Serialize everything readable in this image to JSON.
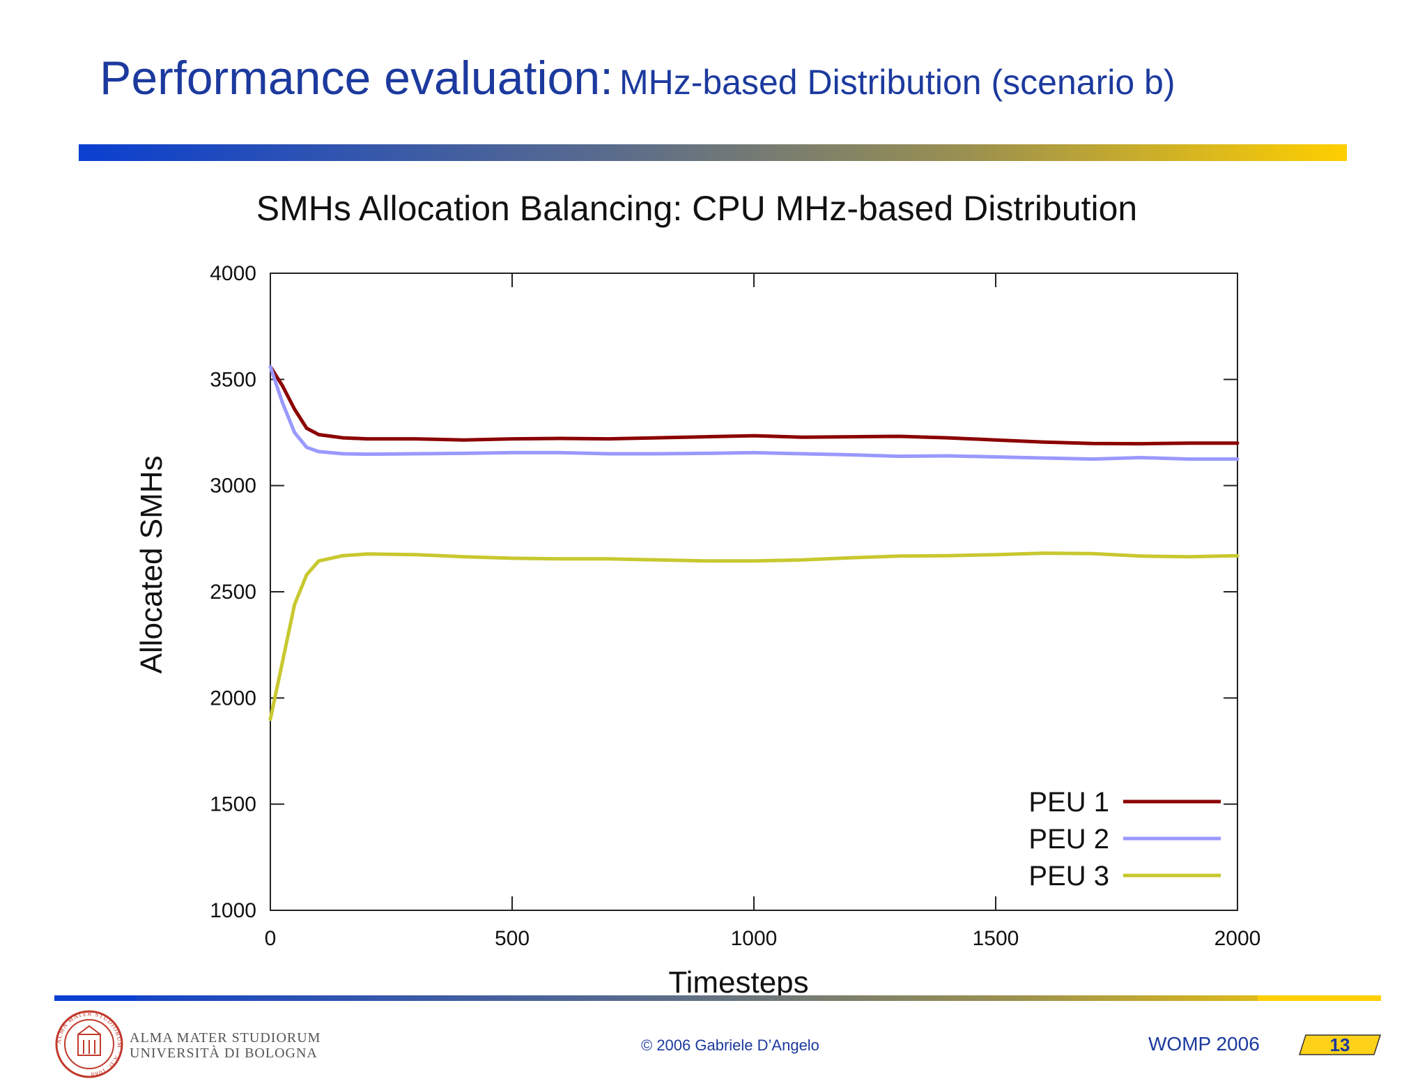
{
  "slide": {
    "title_main": "Performance evaluation:",
    "title_sub": "MHz-based Distribution (scenario b)"
  },
  "chart_data": {
    "type": "line",
    "title": "SMHs Allocation Balancing: CPU MHz-based Distribution",
    "xlabel": "Timesteps",
    "ylabel": "Allocated SMHs",
    "xlim": [
      0,
      2000
    ],
    "ylim": [
      1000,
      4000
    ],
    "xticks": [
      0,
      500,
      1000,
      1500,
      2000
    ],
    "yticks": [
      1000,
      1500,
      2000,
      2500,
      3000,
      3500,
      4000
    ],
    "legend_position": "bottom-right",
    "grid": false,
    "series": [
      {
        "name": "PEU 1",
        "color": "#8b0000",
        "x": [
          0,
          25,
          50,
          75,
          100,
          150,
          200,
          300,
          400,
          500,
          600,
          700,
          800,
          900,
          1000,
          1100,
          1200,
          1300,
          1400,
          1500,
          1600,
          1700,
          1800,
          1900,
          2000
        ],
        "y": [
          3560,
          3470,
          3360,
          3270,
          3240,
          3225,
          3220,
          3220,
          3215,
          3220,
          3222,
          3220,
          3225,
          3230,
          3235,
          3228,
          3230,
          3232,
          3225,
          3215,
          3205,
          3198,
          3197,
          3200,
          3200
        ]
      },
      {
        "name": "PEU 2",
        "color": "#9999ff",
        "x": [
          0,
          25,
          50,
          75,
          100,
          150,
          200,
          300,
          400,
          500,
          600,
          700,
          800,
          900,
          1000,
          1100,
          1200,
          1300,
          1400,
          1500,
          1600,
          1700,
          1800,
          1900,
          2000
        ],
        "y": [
          3560,
          3390,
          3250,
          3180,
          3160,
          3150,
          3148,
          3150,
          3152,
          3155,
          3155,
          3150,
          3150,
          3152,
          3155,
          3150,
          3145,
          3138,
          3140,
          3135,
          3130,
          3125,
          3132,
          3125,
          3125
        ]
      },
      {
        "name": "PEU 3",
        "color": "#c8c830",
        "x": [
          0,
          25,
          50,
          75,
          100,
          150,
          200,
          300,
          400,
          500,
          600,
          700,
          800,
          900,
          1000,
          1100,
          1200,
          1300,
          1400,
          1500,
          1600,
          1700,
          1800,
          1900,
          2000
        ],
        "y": [
          1900,
          2170,
          2440,
          2580,
          2645,
          2670,
          2678,
          2675,
          2665,
          2658,
          2655,
          2655,
          2650,
          2645,
          2645,
          2650,
          2660,
          2668,
          2670,
          2675,
          2682,
          2680,
          2668,
          2665,
          2670
        ]
      }
    ]
  },
  "footer": {
    "logo_line1": "ALMA MATER STUDIORUM",
    "logo_line2": "UNIVERSITÀ DI BOLOGNA",
    "logo_seal_text": "ALMA MATER STUDIORUM · A.D. 1088",
    "copyright": "© 2006 Gabriele D’Angelo",
    "conference": "WOMP 2006",
    "page_number": "13"
  },
  "colors": {
    "title_blue": "#1c3a9e",
    "bar_start": "#0a3fd0",
    "bar_end": "#ffcf00",
    "seal_red": "#c0392b",
    "badge_fill": "#ffd21a"
  }
}
